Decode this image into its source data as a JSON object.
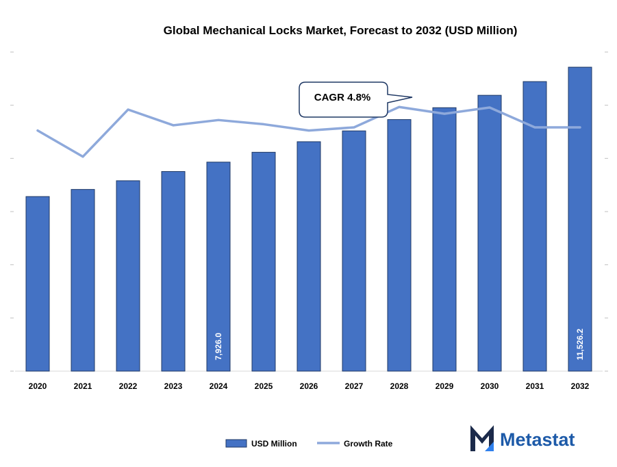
{
  "chart_data": {
    "type": "bar",
    "title": "Global Mechanical Locks Market, Forecast to 2032 (USD Million)",
    "categories": [
      "2020",
      "2021",
      "2022",
      "2023",
      "2024",
      "2025",
      "2026",
      "2027",
      "2028",
      "2029",
      "2030",
      "2031",
      "2032"
    ],
    "series": [
      {
        "name": "USD Million",
        "type": "bar",
        "values": [
          6620,
          6890,
          7220,
          7570,
          7926.0,
          8300,
          8700,
          9110,
          9540,
          9990,
          10460,
          10980,
          11526.2
        ],
        "data_labels": [
          null,
          null,
          null,
          null,
          "7,926.0",
          null,
          null,
          null,
          null,
          null,
          null,
          null,
          "11,526.2"
        ],
        "color": "#4472c4"
      },
      {
        "name": "Growth Rate",
        "type": "line",
        "values": [
          4.6,
          4.1,
          5.0,
          4.7,
          4.8,
          4.72,
          4.6,
          4.66,
          5.05,
          4.92,
          5.04,
          4.66,
          4.66
        ],
        "color": "#8ea9db"
      }
    ],
    "annotation": "CAGR 4.8%",
    "ylim": [
      0,
      12100
    ],
    "growth_ylim": [
      0,
      6.1
    ],
    "grid": false,
    "legend_position": "bottom"
  },
  "brand": {
    "name": "Metastat",
    "color": "#1d5aa8"
  }
}
